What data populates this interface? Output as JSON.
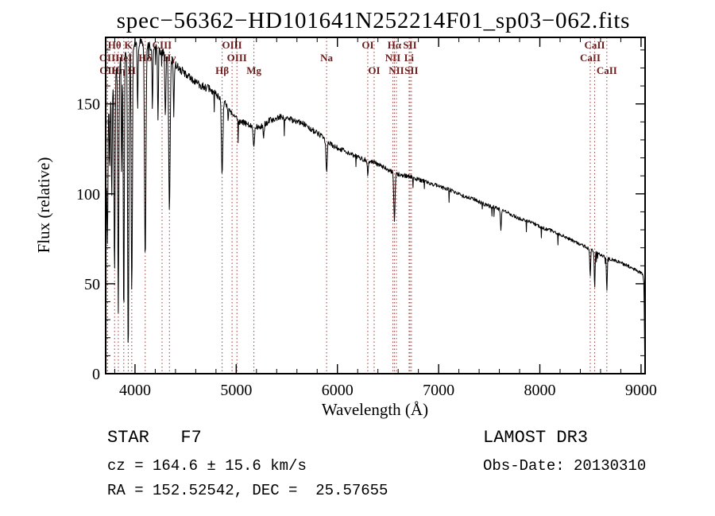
{
  "chart_data": {
    "type": "line",
    "title": "spec−56362−HD101641N252214F01_sp03−062.fits",
    "xlabel": "Wavelength (Å)",
    "ylabel": "Flux (relative)",
    "xlim": [
      3710,
      9040
    ],
    "ylim": [
      0,
      187
    ],
    "xticks": [
      4000,
      5000,
      6000,
      7000,
      8000,
      9000
    ],
    "yticks": [
      0,
      50,
      100,
      150
    ],
    "x_minor_step": 200,
    "y_minor_step": 10,
    "line_color": "#000000",
    "marker_color": "#9b3a3a",
    "marker_label_color": "#6b2020",
    "sample_step": 4,
    "noise_seed": 42,
    "continuum_anchors": [
      [
        3712,
        0
      ],
      [
        3715,
        105
      ],
      [
        3722,
        140
      ],
      [
        3740,
        152
      ],
      [
        3765,
        158
      ],
      [
        3800,
        167
      ],
      [
        3845,
        173
      ],
      [
        3890,
        178
      ],
      [
        3935,
        181
      ],
      [
        3975,
        183
      ],
      [
        4020,
        184
      ],
      [
        4080,
        184
      ],
      [
        4140,
        182
      ],
      [
        4200,
        181
      ],
      [
        4260,
        179
      ],
      [
        4330,
        176
      ],
      [
        4400,
        172
      ],
      [
        4470,
        168
      ],
      [
        4550,
        164
      ],
      [
        4630,
        161
      ],
      [
        4710,
        159
      ],
      [
        4790,
        156
      ],
      [
        4870,
        152
      ],
      [
        4950,
        146
      ],
      [
        5010,
        141
      ],
      [
        5090,
        139
      ],
      [
        5170,
        137
      ],
      [
        5250,
        138
      ],
      [
        5340,
        141
      ],
      [
        5450,
        143
      ],
      [
        5560,
        141
      ],
      [
        5660,
        139
      ],
      [
        5740,
        136
      ],
      [
        5820,
        133
      ],
      [
        5900,
        129
      ],
      [
        5980,
        126
      ],
      [
        6070,
        124
      ],
      [
        6170,
        121
      ],
      [
        6270,
        119
      ],
      [
        6380,
        117
      ],
      [
        6480,
        114
      ],
      [
        6580,
        111
      ],
      [
        6690,
        110
      ],
      [
        6800,
        108
      ],
      [
        6910,
        106
      ],
      [
        7010,
        104
      ],
      [
        7120,
        102
      ],
      [
        7230,
        99
      ],
      [
        7350,
        97
      ],
      [
        7460,
        94
      ],
      [
        7580,
        92
      ],
      [
        7700,
        89
      ],
      [
        7810,
        86
      ],
      [
        7920,
        84
      ],
      [
        8030,
        81
      ],
      [
        8140,
        79
      ],
      [
        8250,
        76
      ],
      [
        8360,
        73
      ],
      [
        8470,
        70
      ],
      [
        8570,
        67
      ],
      [
        8680,
        64
      ],
      [
        8790,
        62
      ],
      [
        8900,
        59
      ],
      [
        9000,
        56
      ],
      [
        9026,
        54
      ],
      [
        9032,
        35
      ],
      [
        9038,
        0
      ]
    ],
    "absorption_lines": [
      [
        3727,
        70,
        5
      ],
      [
        3750,
        112,
        4
      ],
      [
        3771,
        97,
        4
      ],
      [
        3798,
        54,
        5
      ],
      [
        3835,
        34,
        5
      ],
      [
        3868,
        110,
        4
      ],
      [
        3889,
        28,
        5
      ],
      [
        3933,
        10,
        6
      ],
      [
        3968,
        44,
        6
      ],
      [
        4026,
        148,
        4
      ],
      [
        4101,
        62,
        7
      ],
      [
        4172,
        148,
        4
      ],
      [
        4227,
        140,
        4
      ],
      [
        4300,
        142,
        5
      ],
      [
        4340,
        90,
        7
      ],
      [
        4383,
        143,
        4
      ],
      [
        4861,
        112,
        7
      ],
      [
        4920,
        140,
        4
      ],
      [
        5175,
        127,
        6
      ],
      [
        5270,
        130,
        5
      ],
      [
        5893,
        112,
        6
      ],
      [
        6300,
        110,
        4
      ],
      [
        6563,
        85,
        6
      ],
      [
        7615,
        80,
        5
      ],
      [
        8498,
        53,
        4
      ],
      [
        8542,
        48,
        4
      ],
      [
        8662,
        46,
        4
      ]
    ],
    "noise_anchors": [
      [
        3712,
        3.2
      ],
      [
        4200,
        2.6
      ],
      [
        5000,
        2.0
      ],
      [
        5600,
        1.6
      ],
      [
        6300,
        1.3
      ],
      [
        7000,
        1.1
      ],
      [
        8000,
        0.95
      ],
      [
        9038,
        0.9
      ]
    ],
    "spectral_line_markers": [
      {
        "label": "OII",
        "wavelength": 3726,
        "row": 2
      },
      {
        "label": "OII",
        "wavelength": 3729,
        "row": 3
      },
      {
        "label": "Hθ",
        "wavelength": 3798,
        "row": 1
      },
      {
        "label": "Hη",
        "wavelength": 3835,
        "row": 3
      },
      {
        "label": "HeI",
        "wavelength": 3889,
        "row": 2
      },
      {
        "label": "K",
        "wavelength": 3933,
        "row": 1
      },
      {
        "label": "H",
        "wavelength": 3968,
        "row": 3
      },
      {
        "label": "Hδ",
        "wavelength": 4101,
        "row": 2
      },
      {
        "label": "CIII",
        "wavelength": 4267,
        "row": 1
      },
      {
        "label": "Hγ",
        "wavelength": 4340,
        "row": 2
      },
      {
        "label": "Hβ",
        "wavelength": 4861,
        "row": 3
      },
      {
        "label": "OIII",
        "wavelength": 4959,
        "row": 1
      },
      {
        "label": "OIII",
        "wavelength": 5007,
        "row": 2
      },
      {
        "label": "Mg",
        "wavelength": 5175,
        "row": 3
      },
      {
        "label": "Na",
        "wavelength": 5893,
        "row": 2
      },
      {
        "label": "OI",
        "wavelength": 6300,
        "row": 1
      },
      {
        "label": "OI",
        "wavelength": 6363,
        "row": 3
      },
      {
        "label": "NII",
        "wavelength": 6548,
        "row": 2
      },
      {
        "label": "Hα",
        "wavelength": 6563,
        "row": 1
      },
      {
        "label": "NII",
        "wavelength": 6583,
        "row": 3
      },
      {
        "label": "Li",
        "wavelength": 6708,
        "row": 2
      },
      {
        "label": "SII",
        "wavelength": 6717,
        "row": 1
      },
      {
        "label": "SII",
        "wavelength": 6731,
        "row": 3
      },
      {
        "label": "CaII",
        "wavelength": 8498,
        "row": 2
      },
      {
        "label": "CaII",
        "wavelength": 8542,
        "row": 1
      },
      {
        "label": "CaII",
        "wavelength": 8662,
        "row": 3
      }
    ]
  },
  "annotations": {
    "class_line": "STAR   F7",
    "survey": "LAMOST DR3",
    "cz_line": "cz = 164.6 ± 15.6 km/s",
    "obs_date_line": "Obs-Date: 20130310",
    "radec_line": "RA = 152.52542, DEC =  25.57655"
  }
}
